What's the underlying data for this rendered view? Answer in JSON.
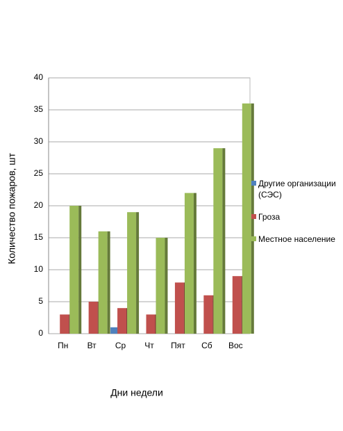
{
  "chart_data": {
    "type": "bar",
    "x_label": "Дни недели",
    "y_label": "Количество пожаров, шт",
    "categories": [
      "Пн",
      "Вт",
      "Ср",
      "Чт",
      "Пят",
      "Сб",
      "Вос"
    ],
    "series": [
      {
        "name": "Другие организации (СЭС)",
        "color": "#4f81bd",
        "values": [
          0,
          0,
          1,
          0,
          0,
          0,
          0
        ]
      },
      {
        "name": "Гроза",
        "color": "#c0504d",
        "values": [
          3,
          5,
          4,
          3,
          8,
          6,
          9
        ]
      },
      {
        "name": "Местное население",
        "color": "#9bbb59",
        "values": [
          20,
          16,
          19,
          15,
          22,
          29,
          36
        ]
      }
    ],
    "ylim": [
      0,
      40
    ],
    "yticks": [
      0,
      5,
      10,
      15,
      20,
      25,
      30,
      35,
      40
    ],
    "grid": true,
    "legend": "right"
  }
}
